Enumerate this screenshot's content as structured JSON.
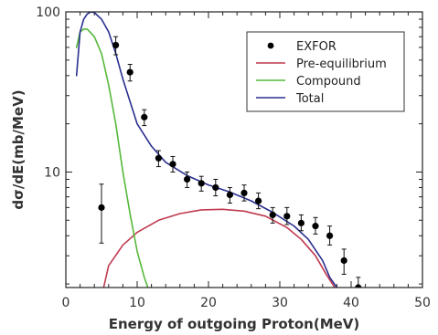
{
  "chart_data": {
    "type": "scatter",
    "title": "",
    "xlabel": "Energy of outgoing Proton(MeV)",
    "ylabel": "dσ/dE(mb/MeV)",
    "xlim": [
      0,
      50
    ],
    "ylim": [
      1.9,
      100
    ],
    "yscale": "log",
    "xticks": [
      "0",
      "10",
      "20",
      "30",
      "40",
      "50"
    ],
    "yticks": [
      {
        "value": 10,
        "label": "10"
      },
      {
        "value": 100,
        "label": "100"
      }
    ],
    "legend_position": "top-right",
    "legend": [
      {
        "name": "EXFOR",
        "kind": "marker",
        "color": "#000000"
      },
      {
        "name": "Pre-equilibrium",
        "kind": "line",
        "color": "#c0394f"
      },
      {
        "name": "Compound",
        "kind": "line",
        "color": "#55b83a"
      },
      {
        "name": "Total",
        "kind": "line",
        "color": "#2a2f8f"
      }
    ],
    "points": [
      {
        "x": 5,
        "y": 6.0,
        "yerr": [
          3.6,
          8.4
        ]
      },
      {
        "x": 7,
        "y": 62,
        "yerr": [
          54,
          70
        ]
      },
      {
        "x": 9,
        "y": 42,
        "yerr": [
          37,
          47
        ]
      },
      {
        "x": 11,
        "y": 22,
        "yerr": [
          19.5,
          24.5
        ]
      },
      {
        "x": 13,
        "y": 12.2,
        "yerr": [
          10.8,
          13.6
        ]
      },
      {
        "x": 15,
        "y": 11.2,
        "yerr": [
          10.0,
          12.5
        ]
      },
      {
        "x": 17,
        "y": 9.0,
        "yerr": [
          8.0,
          10.0
        ]
      },
      {
        "x": 19,
        "y": 8.5,
        "yerr": [
          7.6,
          9.4
        ]
      },
      {
        "x": 21,
        "y": 8.0,
        "yerr": [
          7.1,
          9.0
        ]
      },
      {
        "x": 23,
        "y": 7.2,
        "yerr": [
          6.4,
          8.0
        ]
      },
      {
        "x": 25,
        "y": 7.4,
        "yerr": [
          6.6,
          8.3
        ]
      },
      {
        "x": 27,
        "y": 6.6,
        "yerr": [
          5.9,
          7.4
        ]
      },
      {
        "x": 29,
        "y": 5.4,
        "yerr": [
          4.8,
          6.0
        ]
      },
      {
        "x": 31,
        "y": 5.3,
        "yerr": [
          4.7,
          6.0
        ]
      },
      {
        "x": 33,
        "y": 4.8,
        "yerr": [
          4.3,
          5.4
        ]
      },
      {
        "x": 35,
        "y": 4.6,
        "yerr": [
          4.1,
          5.2
        ]
      },
      {
        "x": 37,
        "y": 4.0,
        "yerr": [
          3.5,
          4.6
        ]
      },
      {
        "x": 39,
        "y": 2.8,
        "yerr": [
          2.3,
          3.3
        ]
      },
      {
        "x": 41,
        "y": 1.9,
        "yerr": [
          1.9,
          2.2
        ]
      }
    ],
    "series": [
      {
        "name": "Pre-equilibrium",
        "color": "#c0394f",
        "x": [
          5.3,
          6,
          8,
          10,
          13,
          16,
          19,
          22,
          25,
          28,
          31,
          33,
          35,
          36.5,
          37.7
        ],
        "y": [
          1.9,
          2.6,
          3.5,
          4.2,
          5.0,
          5.5,
          5.8,
          5.85,
          5.7,
          5.3,
          4.5,
          3.8,
          3.0,
          2.3,
          1.9
        ]
      },
      {
        "name": "Compound",
        "color": "#55b83a",
        "x": [
          1.5,
          2,
          2.5,
          3,
          4,
          5,
          6,
          7,
          8,
          9,
          10,
          11,
          11.5
        ],
        "y": [
          60,
          75,
          78,
          78,
          70,
          55,
          35,
          20,
          10,
          5.5,
          3.2,
          2.2,
          1.9
        ]
      },
      {
        "name": "Total",
        "color": "#2a2f8f",
        "x": [
          1.5,
          2,
          2.5,
          3,
          3.5,
          4,
          5,
          6,
          7,
          8,
          10,
          12,
          14,
          17,
          20,
          23,
          26,
          29,
          32,
          34,
          36,
          37,
          38
        ],
        "y": [
          40,
          75,
          90,
          97,
          100,
          99,
          90,
          75,
          55,
          38,
          20,
          14.5,
          11.5,
          9.5,
          8.3,
          7.5,
          6.6,
          5.6,
          4.6,
          3.8,
          2.8,
          2.2,
          1.9
        ]
      }
    ]
  }
}
